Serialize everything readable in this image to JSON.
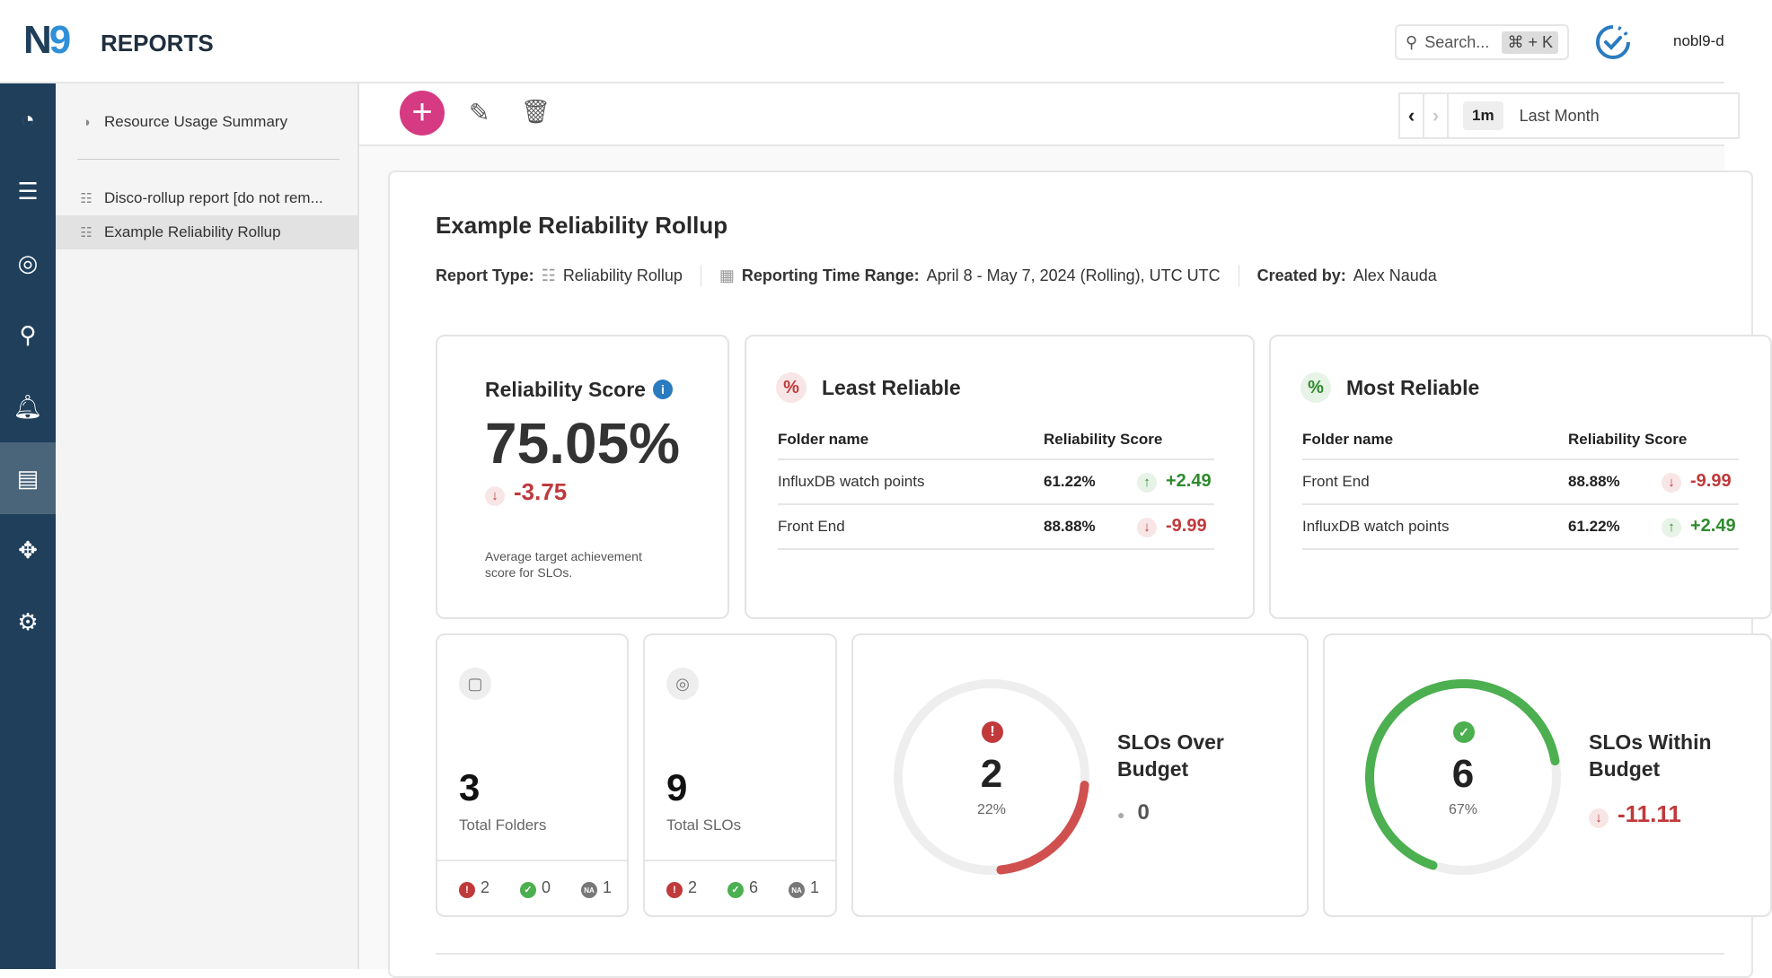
{
  "header": {
    "logo": "N9",
    "app_title": "REPORTS",
    "search_placeholder": "Search...",
    "search_shortcut": "⌘ + K",
    "user": "nobl9-d"
  },
  "rail": {
    "items": [
      "dashboard",
      "service-catalog",
      "slo",
      "query",
      "alerts",
      "reports",
      "integrations",
      "settings"
    ],
    "active": "reports"
  },
  "sidebar": {
    "top_item": "Resource Usage Summary",
    "items": [
      "Disco-rollup report [do not rem...",
      "Example Reliability Rollup"
    ],
    "active_index": 1
  },
  "toolbar": {
    "time_chip": "1m",
    "time_label": "Last Month"
  },
  "report": {
    "title": "Example Reliability Rollup",
    "meta": {
      "type_label": "Report Type:",
      "type_value": "Reliability Rollup",
      "range_label": "Reporting Time Range:",
      "range_value": "April 8 - May 7, 2024 (Rolling), UTC UTC",
      "created_label": "Created by:",
      "created_value": "Alex Nauda"
    },
    "score": {
      "title": "Reliability Score",
      "value": "75.05%",
      "delta": "-3.75",
      "note": "Average target achievement score for SLOs."
    },
    "least": {
      "title": "Least Reliable",
      "col1": "Folder name",
      "col2": "Reliability Score",
      "rows": [
        {
          "name": "InfluxDB watch points",
          "score": "61.22%",
          "delta": "+2.49",
          "dir": "up"
        },
        {
          "name": "Front End",
          "score": "88.88%",
          "delta": "-9.99",
          "dir": "down"
        }
      ]
    },
    "most": {
      "title": "Most Reliable",
      "col1": "Folder name",
      "col2": "Reliability Score",
      "rows": [
        {
          "name": "Front End",
          "score": "88.88%",
          "delta": "-9.99",
          "dir": "down"
        },
        {
          "name": "InfluxDB watch points",
          "score": "61.22%",
          "delta": "+2.49",
          "dir": "up"
        }
      ]
    },
    "folders": {
      "value": "3",
      "label": "Total Folders",
      "bad": "2",
      "good": "0",
      "na": "1"
    },
    "slos": {
      "value": "9",
      "label": "Total SLOs",
      "bad": "2",
      "good": "6",
      "na": "1"
    },
    "over": {
      "value": "2",
      "percent": "22%",
      "fraction": 0.22,
      "title": "SLOs Over Budget",
      "delta": "0",
      "color": "#d05050"
    },
    "within": {
      "value": "6",
      "percent": "67%",
      "fraction": 0.67,
      "title": "SLOs Within Budget",
      "delta": "-11.11",
      "color": "#4caf50"
    }
  }
}
